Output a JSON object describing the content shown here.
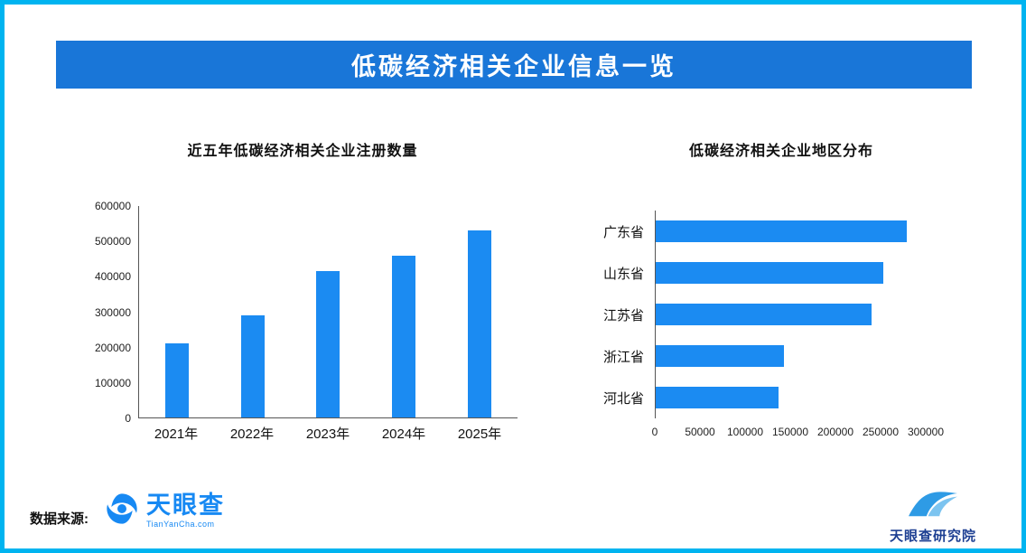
{
  "page": {
    "banner_title": "低碳经济相关企业信息一览",
    "footer": {
      "source_label": "数据来源:",
      "brand_name": "天眼查",
      "brand_domain": "TianYanCha.com",
      "institute_name": "天眼查研究院"
    }
  },
  "colors": {
    "frame_border": "#00b4f0",
    "banner_bg": "#1976d8",
    "banner_text": "#ffffff",
    "bar_fill": "#1b8bf2",
    "brand_blue": "#1789f3",
    "institute_navy": "#1d3f92"
  },
  "chart_data": [
    {
      "type": "bar",
      "title": "近五年低碳经济相关企业注册数量",
      "categories": [
        "2021年",
        "2022年",
        "2023年",
        "2024年",
        "2025年"
      ],
      "values": [
        210000,
        290000,
        415000,
        460000,
        530000
      ],
      "ylim": [
        0,
        600000
      ],
      "yticks": [
        0,
        100000,
        200000,
        300000,
        400000,
        500000,
        600000
      ],
      "xlabel": "",
      "ylabel": "",
      "grid": false,
      "legend": false
    },
    {
      "type": "bar",
      "orientation": "horizontal",
      "title": "低碳经济相关企业地区分布",
      "categories": [
        "广东省",
        "山东省",
        "江苏省",
        "浙江省",
        "河北省"
      ],
      "values": [
        270000,
        245000,
        232000,
        138000,
        132000
      ],
      "xlim": [
        0,
        300000
      ],
      "xticks": [
        0,
        50000,
        100000,
        150000,
        200000,
        250000,
        300000
      ],
      "grid": false,
      "legend": false
    }
  ]
}
